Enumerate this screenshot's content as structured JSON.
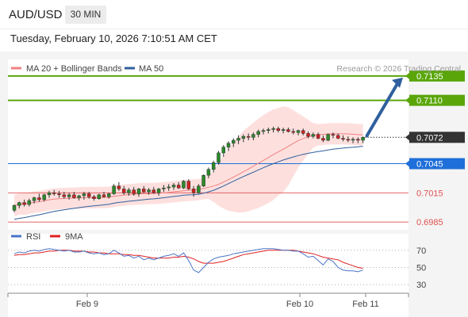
{
  "header": {
    "pair": "AUD/USD",
    "timeframe": "30 MIN"
  },
  "datetime": "Tuesday, February 10, 2026 7:10:51 AM CET",
  "legend": {
    "ma20": {
      "label": "MA 20 + Bollinger Bands",
      "color": "#f08080"
    },
    "ma50": {
      "label": "MA 50",
      "color": "#2f5f9e"
    },
    "rsi": {
      "label": "RSI",
      "color": "#4a74c9"
    },
    "ma9": {
      "label": "9MA",
      "color": "#e02020"
    }
  },
  "credit": "Research © 2026 Trading Central",
  "chart_data": {
    "type": "candlestick",
    "ylim": [
      0.6977,
      0.7152
    ],
    "current_price": 0.7072,
    "levels": [
      {
        "value": 0.7135,
        "label": "0.7135",
        "color": "#5aa60a",
        "style": "badge"
      },
      {
        "value": 0.711,
        "label": "0.7110",
        "color": "#5aa60a",
        "style": "badge"
      },
      {
        "value": 0.7072,
        "label": "0.7072",
        "color": "#333333",
        "style": "badge-dotted"
      },
      {
        "value": 0.7045,
        "label": "0.7045",
        "color": "#1e6fd9",
        "style": "badge"
      },
      {
        "value": 0.7015,
        "label": "0.7015",
        "color": "#e05050",
        "style": "text"
      },
      {
        "value": 0.6985,
        "label": "0.6985",
        "color": "#e05050",
        "style": "text"
      }
    ],
    "x_ticks": [
      "Feb 9",
      "Feb 10",
      "Feb 11"
    ],
    "rsi_ticks": [
      70,
      50,
      30
    ],
    "rsi_ylim": [
      20,
      80
    ],
    "candles": [
      [
        0.6997,
        0.7003,
        0.6995,
        0.7002
      ],
      [
        0.7002,
        0.7006,
        0.6999,
        0.7005
      ],
      [
        0.7005,
        0.7008,
        0.7001,
        0.7003
      ],
      [
        0.7003,
        0.7009,
        0.7001,
        0.7007
      ],
      [
        0.7007,
        0.7011,
        0.7004,
        0.701
      ],
      [
        0.701,
        0.7014,
        0.7006,
        0.7008
      ],
      [
        0.7008,
        0.7014,
        0.7006,
        0.7013
      ],
      [
        0.7013,
        0.7017,
        0.701,
        0.7015
      ],
      [
        0.7015,
        0.7018,
        0.7012,
        0.7014
      ],
      [
        0.7014,
        0.7017,
        0.701,
        0.7013
      ],
      [
        0.7013,
        0.7016,
        0.7009,
        0.7011
      ],
      [
        0.7011,
        0.7015,
        0.7008,
        0.7013
      ],
      [
        0.7013,
        0.7016,
        0.7009,
        0.701
      ],
      [
        0.701,
        0.7013,
        0.7007,
        0.7012
      ],
      [
        0.7012,
        0.7016,
        0.7008,
        0.7014
      ],
      [
        0.7014,
        0.7016,
        0.7009,
        0.7011
      ],
      [
        0.7011,
        0.7013,
        0.7007,
        0.7009
      ],
      [
        0.7009,
        0.7014,
        0.7008,
        0.7013
      ],
      [
        0.7013,
        0.7016,
        0.701,
        0.7011
      ],
      [
        0.7011,
        0.7015,
        0.7009,
        0.7014
      ],
      [
        0.7014,
        0.7024,
        0.7013,
        0.7022
      ],
      [
        0.7022,
        0.7026,
        0.7017,
        0.7019
      ],
      [
        0.7019,
        0.7022,
        0.7013,
        0.7015
      ],
      [
        0.7015,
        0.702,
        0.7012,
        0.7018
      ],
      [
        0.7018,
        0.7021,
        0.7012,
        0.7014
      ],
      [
        0.7014,
        0.702,
        0.7011,
        0.7019
      ],
      [
        0.7019,
        0.7022,
        0.7015,
        0.7016
      ],
      [
        0.7016,
        0.702,
        0.7013,
        0.7018
      ],
      [
        0.7018,
        0.7021,
        0.7014,
        0.7015
      ],
      [
        0.7015,
        0.702,
        0.7012,
        0.7019
      ],
      [
        0.7019,
        0.7023,
        0.7016,
        0.702
      ],
      [
        0.702,
        0.7024,
        0.7017,
        0.7021
      ],
      [
        0.7021,
        0.7025,
        0.7018,
        0.7023
      ],
      [
        0.7023,
        0.7026,
        0.7019,
        0.702
      ],
      [
        0.702,
        0.7028,
        0.7019,
        0.7027
      ],
      [
        0.7027,
        0.7029,
        0.7018,
        0.7019
      ],
      [
        0.7019,
        0.7022,
        0.7011,
        0.7015
      ],
      [
        0.7015,
        0.7024,
        0.7014,
        0.7022
      ],
      [
        0.7022,
        0.7034,
        0.7021,
        0.7033
      ],
      [
        0.7033,
        0.7041,
        0.703,
        0.7039
      ],
      [
        0.7039,
        0.7048,
        0.7036,
        0.7046
      ],
      [
        0.7046,
        0.7058,
        0.7044,
        0.7056
      ],
      [
        0.7056,
        0.7064,
        0.7052,
        0.7062
      ],
      [
        0.7062,
        0.7068,
        0.7058,
        0.7066
      ],
      [
        0.7066,
        0.7071,
        0.7062,
        0.7069
      ],
      [
        0.7069,
        0.7074,
        0.7065,
        0.7071
      ],
      [
        0.7071,
        0.7075,
        0.7067,
        0.7073
      ],
      [
        0.7073,
        0.7076,
        0.7069,
        0.7072
      ],
      [
        0.7072,
        0.7077,
        0.7069,
        0.7075
      ],
      [
        0.7075,
        0.708,
        0.7072,
        0.7078
      ],
      [
        0.7078,
        0.7081,
        0.7075,
        0.7079
      ],
      [
        0.7079,
        0.7082,
        0.7076,
        0.708
      ],
      [
        0.708,
        0.7083,
        0.7077,
        0.7081
      ],
      [
        0.7081,
        0.7083,
        0.7077,
        0.7079
      ],
      [
        0.7079,
        0.7082,
        0.7076,
        0.708
      ],
      [
        0.708,
        0.7082,
        0.7077,
        0.7078
      ],
      [
        0.7078,
        0.7081,
        0.7075,
        0.7077
      ],
      [
        0.7077,
        0.708,
        0.7074,
        0.7079
      ],
      [
        0.7079,
        0.7081,
        0.7074,
        0.7076
      ],
      [
        0.7076,
        0.7078,
        0.7071,
        0.7073
      ],
      [
        0.7073,
        0.7077,
        0.7071,
        0.7075
      ],
      [
        0.7075,
        0.7077,
        0.707,
        0.7071
      ],
      [
        0.7071,
        0.7074,
        0.7067,
        0.7069
      ],
      [
        0.7069,
        0.7076,
        0.7068,
        0.7075
      ],
      [
        0.7075,
        0.7077,
        0.7071,
        0.7074
      ],
      [
        0.7074,
        0.7076,
        0.707,
        0.7071
      ],
      [
        0.7071,
        0.7074,
        0.7068,
        0.707
      ],
      [
        0.707,
        0.7073,
        0.7067,
        0.7069
      ],
      [
        0.7069,
        0.7072,
        0.7066,
        0.707
      ],
      [
        0.707,
        0.7072,
        0.7066,
        0.7069
      ],
      [
        0.7069,
        0.7073,
        0.7066,
        0.7072
      ]
    ],
    "rsi": [
      66,
      68,
      67,
      69,
      70,
      69,
      71,
      72,
      71,
      70,
      69,
      70,
      68,
      68,
      69,
      67,
      66,
      67,
      65,
      66,
      70,
      67,
      63,
      64,
      61,
      63,
      59,
      61,
      59,
      61,
      63,
      64,
      66,
      63,
      67,
      58,
      47,
      44,
      50,
      56,
      60,
      62,
      63,
      64,
      66,
      67,
      68,
      69,
      70,
      71,
      72,
      72,
      72,
      71,
      70,
      70,
      69,
      69,
      66,
      62,
      63,
      58,
      53,
      60,
      57,
      50,
      47,
      46,
      46,
      45,
      47
    ],
    "rsi9": [
      64,
      65,
      65,
      66,
      67,
      67,
      68,
      69,
      69,
      70,
      70,
      70,
      69,
      69,
      69,
      68,
      68,
      67,
      67,
      66,
      66,
      66,
      65,
      65,
      64,
      64,
      63,
      62,
      61,
      61,
      61,
      61,
      62,
      62,
      63,
      62,
      60,
      57,
      55,
      55,
      55,
      56,
      57,
      59,
      61,
      63,
      65,
      66,
      67,
      68,
      69,
      70,
      70,
      70,
      70,
      70,
      70,
      69,
      68,
      67,
      66,
      64,
      62,
      61,
      60,
      59,
      56,
      54,
      52,
      50,
      49
    ]
  }
}
